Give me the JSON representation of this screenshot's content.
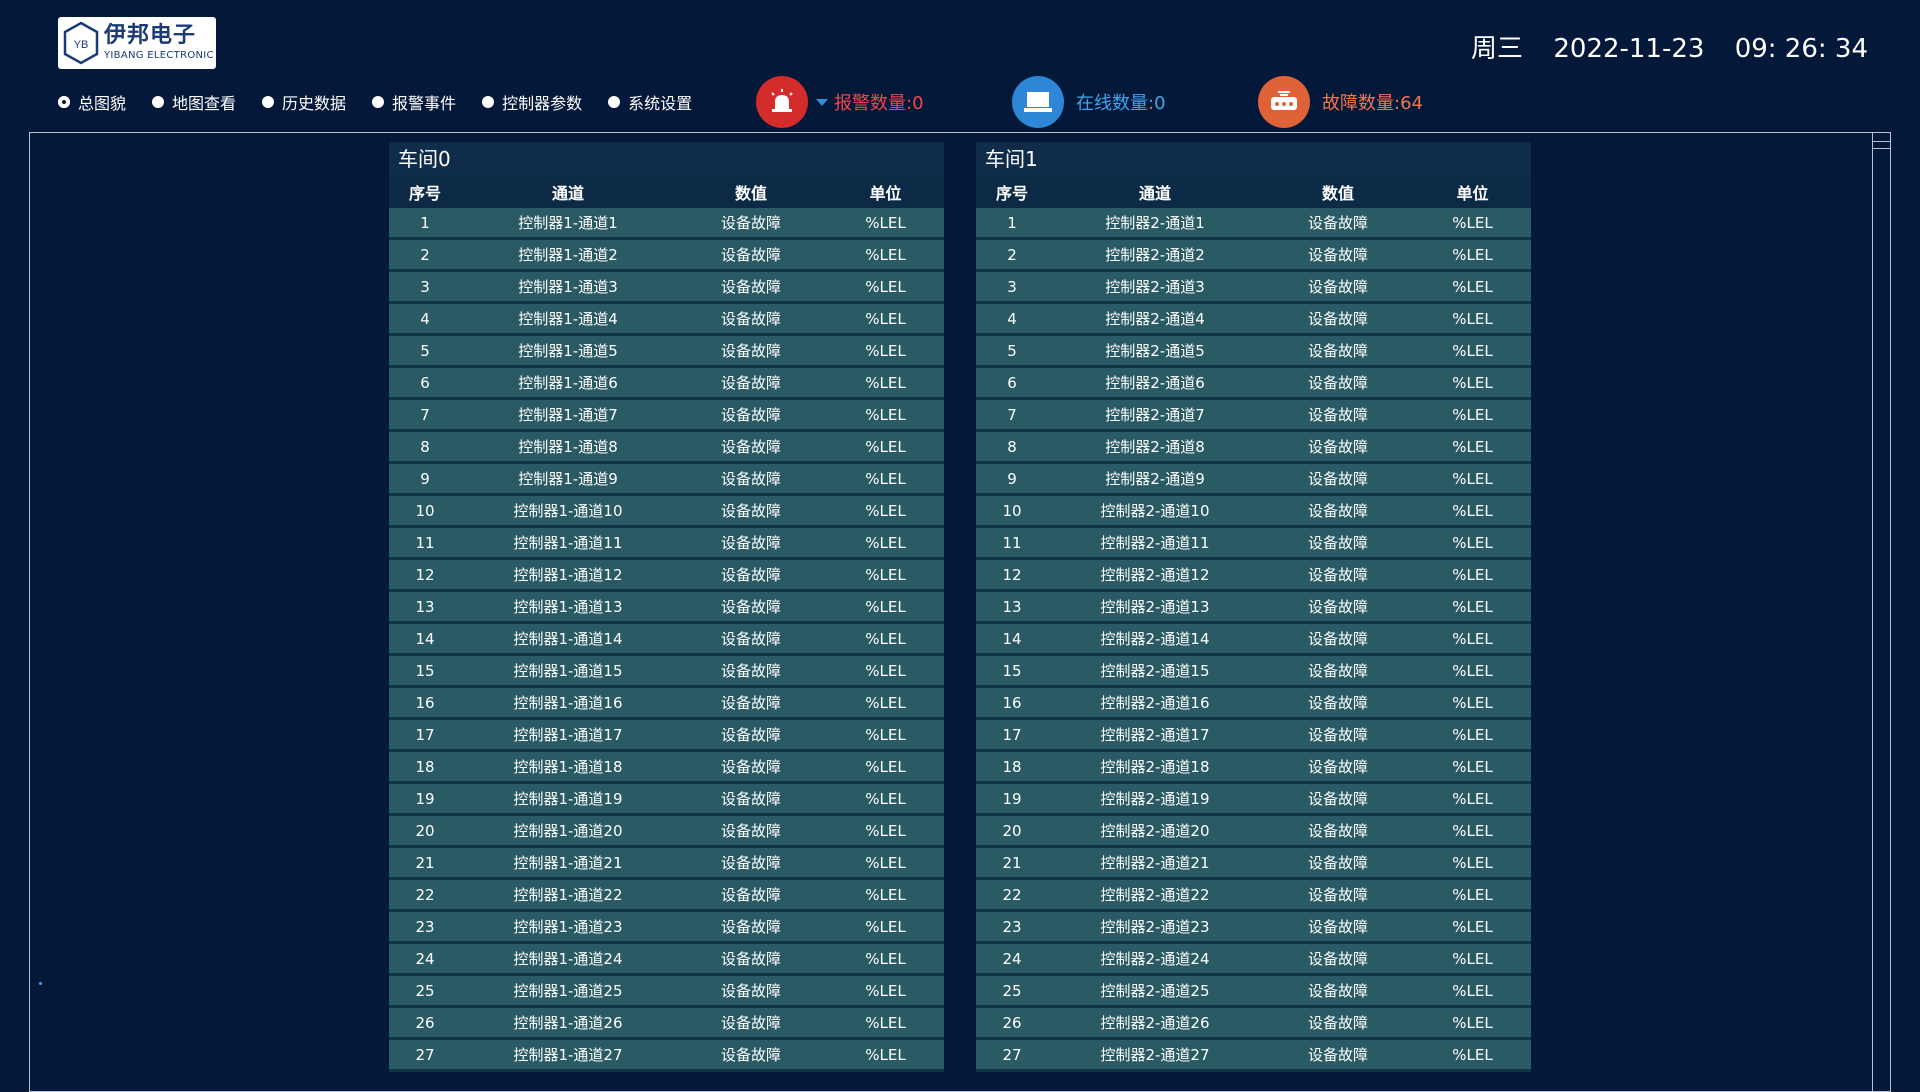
{
  "logo": {
    "name": "伊邦电子",
    "sub": "YIBANG ELECTRONIC",
    "mark": "YB"
  },
  "datetime": {
    "weekday": "周三",
    "date": "2022-11-23",
    "time": "09: 26: 34"
  },
  "nav": [
    {
      "label": "总图貌",
      "selected": true
    },
    {
      "label": "地图查看",
      "selected": false
    },
    {
      "label": "历史数据",
      "selected": false
    },
    {
      "label": "报警事件",
      "selected": false
    },
    {
      "label": "控制器参数",
      "selected": false
    },
    {
      "label": "系统设置",
      "selected": false
    }
  ],
  "stats": {
    "alarm": {
      "label": "报警数量:0",
      "icon": "alarm-bell-icon",
      "color": "#ee4848"
    },
    "online": {
      "label": "在线数量:0",
      "icon": "monitor-icon",
      "color": "#3fa5ec"
    },
    "fault": {
      "label": "故障数量:64",
      "icon": "router-device-icon",
      "color": "#f0764b"
    }
  },
  "columns": [
    "序号",
    "通道",
    "数值",
    "单位"
  ],
  "tables": [
    {
      "title": "车间0",
      "rows": [
        [
          "1",
          "控制器1-通道1",
          "设备故障",
          "%LEL"
        ],
        [
          "2",
          "控制器1-通道2",
          "设备故障",
          "%LEL"
        ],
        [
          "3",
          "控制器1-通道3",
          "设备故障",
          "%LEL"
        ],
        [
          "4",
          "控制器1-通道4",
          "设备故障",
          "%LEL"
        ],
        [
          "5",
          "控制器1-通道5",
          "设备故障",
          "%LEL"
        ],
        [
          "6",
          "控制器1-通道6",
          "设备故障",
          "%LEL"
        ],
        [
          "7",
          "控制器1-通道7",
          "设备故障",
          "%LEL"
        ],
        [
          "8",
          "控制器1-通道8",
          "设备故障",
          "%LEL"
        ],
        [
          "9",
          "控制器1-通道9",
          "设备故障",
          "%LEL"
        ],
        [
          "10",
          "控制器1-通道10",
          "设备故障",
          "%LEL"
        ],
        [
          "11",
          "控制器1-通道11",
          "设备故障",
          "%LEL"
        ],
        [
          "12",
          "控制器1-通道12",
          "设备故障",
          "%LEL"
        ],
        [
          "13",
          "控制器1-通道13",
          "设备故障",
          "%LEL"
        ],
        [
          "14",
          "控制器1-通道14",
          "设备故障",
          "%LEL"
        ],
        [
          "15",
          "控制器1-通道15",
          "设备故障",
          "%LEL"
        ],
        [
          "16",
          "控制器1-通道16",
          "设备故障",
          "%LEL"
        ],
        [
          "17",
          "控制器1-通道17",
          "设备故障",
          "%LEL"
        ],
        [
          "18",
          "控制器1-通道18",
          "设备故障",
          "%LEL"
        ],
        [
          "19",
          "控制器1-通道19",
          "设备故障",
          "%LEL"
        ],
        [
          "20",
          "控制器1-通道20",
          "设备故障",
          "%LEL"
        ],
        [
          "21",
          "控制器1-通道21",
          "设备故障",
          "%LEL"
        ],
        [
          "22",
          "控制器1-通道22",
          "设备故障",
          "%LEL"
        ],
        [
          "23",
          "控制器1-通道23",
          "设备故障",
          "%LEL"
        ],
        [
          "24",
          "控制器1-通道24",
          "设备故障",
          "%LEL"
        ],
        [
          "25",
          "控制器1-通道25",
          "设备故障",
          "%LEL"
        ],
        [
          "26",
          "控制器1-通道26",
          "设备故障",
          "%LEL"
        ],
        [
          "27",
          "控制器1-通道27",
          "设备故障",
          "%LEL"
        ]
      ]
    },
    {
      "title": "车间1",
      "rows": [
        [
          "1",
          "控制器2-通道1",
          "设备故障",
          "%LEL"
        ],
        [
          "2",
          "控制器2-通道2",
          "设备故障",
          "%LEL"
        ],
        [
          "3",
          "控制器2-通道3",
          "设备故障",
          "%LEL"
        ],
        [
          "4",
          "控制器2-通道4",
          "设备故障",
          "%LEL"
        ],
        [
          "5",
          "控制器2-通道5",
          "设备故障",
          "%LEL"
        ],
        [
          "6",
          "控制器2-通道6",
          "设备故障",
          "%LEL"
        ],
        [
          "7",
          "控制器2-通道7",
          "设备故障",
          "%LEL"
        ],
        [
          "8",
          "控制器2-通道8",
          "设备故障",
          "%LEL"
        ],
        [
          "9",
          "控制器2-通道9",
          "设备故障",
          "%LEL"
        ],
        [
          "10",
          "控制器2-通道10",
          "设备故障",
          "%LEL"
        ],
        [
          "11",
          "控制器2-通道11",
          "设备故障",
          "%LEL"
        ],
        [
          "12",
          "控制器2-通道12",
          "设备故障",
          "%LEL"
        ],
        [
          "13",
          "控制器2-通道13",
          "设备故障",
          "%LEL"
        ],
        [
          "14",
          "控制器2-通道14",
          "设备故障",
          "%LEL"
        ],
        [
          "15",
          "控制器2-通道15",
          "设备故障",
          "%LEL"
        ],
        [
          "16",
          "控制器2-通道16",
          "设备故障",
          "%LEL"
        ],
        [
          "17",
          "控制器2-通道17",
          "设备故障",
          "%LEL"
        ],
        [
          "18",
          "控制器2-通道18",
          "设备故障",
          "%LEL"
        ],
        [
          "19",
          "控制器2-通道19",
          "设备故障",
          "%LEL"
        ],
        [
          "20",
          "控制器2-通道20",
          "设备故障",
          "%LEL"
        ],
        [
          "21",
          "控制器2-通道21",
          "设备故障",
          "%LEL"
        ],
        [
          "22",
          "控制器2-通道22",
          "设备故障",
          "%LEL"
        ],
        [
          "23",
          "控制器2-通道23",
          "设备故障",
          "%LEL"
        ],
        [
          "24",
          "控制器2-通道24",
          "设备故障",
          "%LEL"
        ],
        [
          "25",
          "控制器2-通道25",
          "设备故障",
          "%LEL"
        ],
        [
          "26",
          "控制器2-通道26",
          "设备故障",
          "%LEL"
        ],
        [
          "27",
          "控制器2-通道27",
          "设备故障",
          "%LEL"
        ]
      ]
    }
  ],
  "theme": {
    "background": "#04183a",
    "row": "#2a5a63",
    "header": "#0c2a45"
  }
}
